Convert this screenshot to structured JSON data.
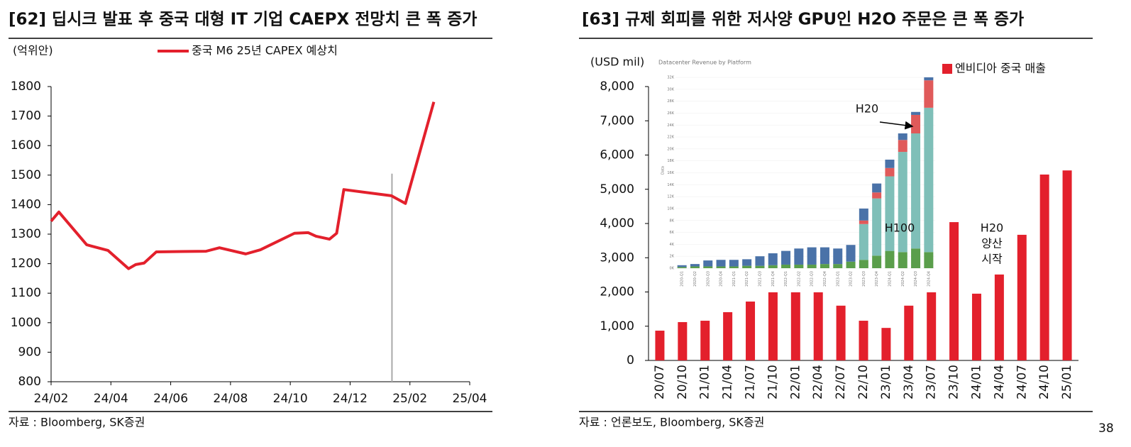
{
  "page_number": "38",
  "chart_data": [
    {
      "type": "line",
      "title": "[62] 딥시크 발표 후 중국 대형 IT 기업 CAEPX 전망치 큰 폭 증가",
      "unit_label": "(억위안)",
      "source": "자료 : Bloomberg, SK증권",
      "series": [
        {
          "name": "중국 M6 25년 CAPEX 예상치",
          "color": "#e3202c",
          "x": [
            0,
            0.26,
            1.19,
            1.9,
            2.59,
            2.83,
            3.11,
            3.52,
            5.18,
            5.63,
            6.51,
            7.0,
            8.14,
            8.6,
            8.86,
            9.31,
            9.55,
            9.79,
            11.38,
            11.85,
            12.8
          ],
          "values": [
            1344,
            1375,
            1264,
            1245,
            1183,
            1197,
            1202,
            1240,
            1242,
            1254,
            1233,
            1247,
            1303,
            1305,
            1293,
            1283,
            1303,
            1451,
            1430,
            1404,
            1748
          ]
        }
      ],
      "xlim": [
        0,
        14
      ],
      "xticks": [
        {
          "value": 0,
          "label": "24/02"
        },
        {
          "value": 2,
          "label": "24/04"
        },
        {
          "value": 4,
          "label": "24/06"
        },
        {
          "value": 6,
          "label": "24/08"
        },
        {
          "value": 8,
          "label": "24/10"
        },
        {
          "value": 10,
          "label": "24/12"
        },
        {
          "value": 12,
          "label": "25/02"
        },
        {
          "value": 14,
          "label": "25/04"
        }
      ],
      "ylim": [
        800,
        1800
      ],
      "yticks": [
        800,
        900,
        1000,
        1100,
        1200,
        1300,
        1400,
        1500,
        1600,
        1700,
        1800
      ],
      "vline": {
        "x": 11.4,
        "top": 1505,
        "color": "#aaaaaa"
      }
    },
    {
      "type": "bar",
      "title": "[63] 규제 회피를 위한 저사양 GPU인 H2O 주문은 큰 폭 증가",
      "unit_label": "(USD mil)",
      "source": "자료 : 언론보도, Bloomberg, SK증권",
      "categories": [
        "20/07",
        "20/10",
        "21/01",
        "21/04",
        "21/07",
        "21/10",
        "22/01",
        "22/04",
        "22/07",
        "22/10",
        "23/01",
        "23/04",
        "23/07",
        "23/10",
        "24/01",
        "24/04",
        "24/07",
        "24/10",
        "25/01"
      ],
      "series": [
        {
          "name": "엔비디아 중국 매출",
          "color": "#e3202c",
          "values": [
            870,
            1120,
            1160,
            1410,
            1720,
            1990,
            1990,
            1990,
            1600,
            1160,
            950,
            1600,
            1990,
            4040,
            1950,
            2510,
            3670,
            5430,
            5550
          ]
        }
      ],
      "ylim": [
        0,
        8000
      ],
      "yticks": [
        0,
        {
          "value": 1000,
          "label": "1,000"
        },
        {
          "value": 2000,
          "label": "2,000"
        },
        {
          "value": 3000,
          "label": "3,000"
        },
        {
          "value": 4000,
          "label": "4,000"
        },
        {
          "value": 5000,
          "label": "5,000"
        },
        {
          "value": 6000,
          "label": "6,000"
        },
        {
          "value": 7000,
          "label": "7,000"
        },
        {
          "value": 8000,
          "label": "8,000"
        }
      ],
      "annotation_lines": [
        "H20",
        "양산",
        "시작"
      ]
    },
    {
      "type": "stacked_bar",
      "title": "Datacenter Revenue by Platform",
      "ylabel": "Data",
      "categories": [
        "2020-Q1",
        "2020-Q2",
        "2020-Q3",
        "2020-Q4",
        "2021-Q1",
        "2021-Q2",
        "2021-Q3",
        "2021-Q4",
        "2022-Q1",
        "2022-Q2",
        "2022-Q3",
        "2022-Q4",
        "2023-Q1",
        "2023-Q2",
        "2023-Q3",
        "2023-Q4",
        "2024-Q1",
        "2024-Q2",
        "2024-Q3",
        "2024-Q4"
      ],
      "series": [
        {
          "color": "#5a9e4b",
          "values": [
            0.2,
            0.3,
            0.3,
            0.3,
            0.3,
            0.4,
            0.4,
            0.5,
            0.6,
            0.6,
            0.6,
            0.7,
            0.7,
            1.1,
            1.4,
            2.1,
            2.9,
            2.7,
            3.3,
            2.7
          ]
        },
        {
          "color": "#7fbfb8",
          "values": [
            0,
            0,
            0,
            0,
            0,
            0,
            0,
            0,
            0,
            0,
            0,
            0,
            0,
            0,
            6.0,
            9.6,
            12.5,
            16.8,
            19.3,
            24.2
          ]
        },
        {
          "color": "#e05a5a",
          "values": [
            0,
            0,
            0,
            0,
            0,
            0,
            0,
            0,
            0,
            0,
            0,
            0,
            0,
            0,
            0.6,
            1.0,
            1.4,
            2.0,
            3.1,
            4.6
          ]
        },
        {
          "color": "#4a72a8",
          "values": [
            0.3,
            0.4,
            1.0,
            1.1,
            1.1,
            1.1,
            1.6,
            2.0,
            2.3,
            2.7,
            2.9,
            2.8,
            2.6,
            2.8,
            2.0,
            1.5,
            1.4,
            1.1,
            0.5,
            0.5
          ]
        }
      ],
      "ylim": [
        0,
        32
      ],
      "yticks": [
        {
          "value": 0,
          "label": "0K"
        },
        {
          "value": 2,
          "label": "2K"
        },
        {
          "value": 4,
          "label": "4K"
        },
        {
          "value": 6,
          "label": "6K"
        },
        {
          "value": 8,
          "label": "8K"
        },
        {
          "value": 10,
          "label": "10K"
        },
        {
          "value": 12,
          "label": "12K"
        },
        {
          "value": 14,
          "label": "14K"
        },
        {
          "value": 16,
          "label": "16K"
        },
        {
          "value": 18,
          "label": "18K"
        },
        {
          "value": 20,
          "label": "20K"
        },
        {
          "value": 22,
          "label": "22K"
        },
        {
          "value": 24,
          "label": "24K"
        },
        {
          "value": 26,
          "label": "26K"
        },
        {
          "value": 28,
          "label": "28K"
        },
        {
          "value": 30,
          "label": "30K"
        },
        {
          "value": 32,
          "label": "32K"
        }
      ],
      "annotations": [
        "H20",
        "H100"
      ]
    }
  ]
}
